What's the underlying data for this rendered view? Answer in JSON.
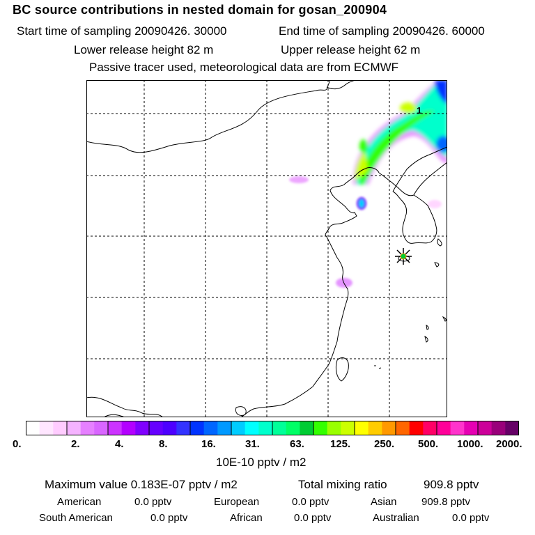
{
  "header": {
    "title": "BC  source contributions in nested domain for gosan_200904",
    "start_label": "Start time of sampling 20090426. 30000",
    "end_label": "End time of sampling 20090426. 60000",
    "lower_label": "Lower release height   82 m",
    "upper_label": "Upper release height   62 m",
    "note": "Passive tracer used, meteorological data are from ECMWF"
  },
  "map": {
    "contour_label": "1",
    "receptor_marker": "gosan-receptor-star"
  },
  "colorbar": {
    "colors": [
      "#ffffff",
      "#ffe6ff",
      "#ffccff",
      "#f5b3ff",
      "#e680ff",
      "#d966ff",
      "#cc33ff",
      "#b300ff",
      "#8000ff",
      "#6600ff",
      "#4d00ff",
      "#3333ff",
      "#0033ff",
      "#0066ff",
      "#0099ff",
      "#00ccff",
      "#00ffff",
      "#00ffcc",
      "#00ff99",
      "#00ff66",
      "#00cc33",
      "#33ff00",
      "#99ff00",
      "#ccff00",
      "#ffff00",
      "#ffcc00",
      "#ff9900",
      "#ff6600",
      "#ff0000",
      "#ff0066",
      "#ff0099",
      "#ff33cc",
      "#e600b3",
      "#cc0099",
      "#99007a",
      "#660066"
    ],
    "tick_labels": [
      "0.",
      "2.",
      "4.",
      "8.",
      "16.",
      "31.",
      "63.",
      "125.",
      "250.",
      "500.",
      "1000.",
      "2000."
    ],
    "unit": "10E-10 pptv / m2"
  },
  "summary": {
    "max_label": "Maximum value  0.183E-07 pptv / m2",
    "total_label": "Total mixing ratio",
    "total_value": "909.8 pptv",
    "american_label": "American",
    "american_value": "0.0 pptv",
    "european_label": "European",
    "european_value": "0.0 pptv",
    "asian_label": "Asian",
    "asian_value": "909.8 pptv",
    "south_american_label": "South American",
    "south_american_value": "0.0 pptv",
    "african_label": "African",
    "african_value": "0.0 pptv",
    "australian_label": "Australian",
    "australian_value": "0.0 pptv"
  }
}
